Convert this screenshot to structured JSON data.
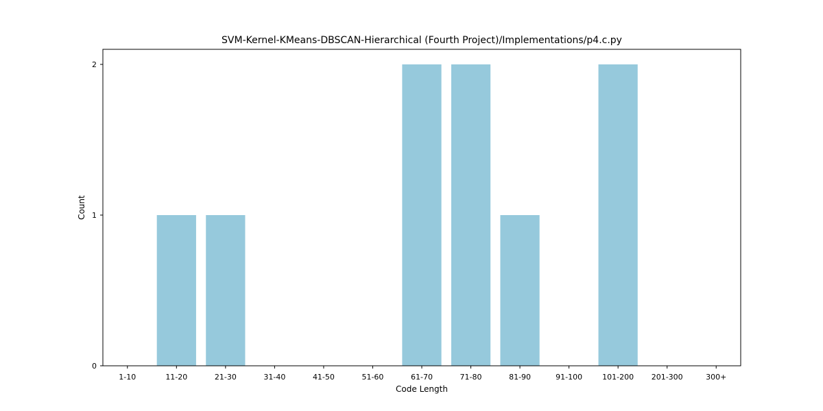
{
  "chart_data": {
    "type": "bar",
    "title": "SVM-Kernel-KMeans-DBSCAN-Hierarchical (Fourth Project)/Implementations/p4.c.py",
    "xlabel": "Code Length",
    "ylabel": "Count",
    "categories": [
      "1-10",
      "11-20",
      "21-30",
      "31-40",
      "41-50",
      "51-60",
      "61-70",
      "71-80",
      "81-90",
      "91-100",
      "101-200",
      "201-300",
      "300+"
    ],
    "values": [
      0,
      1,
      1,
      0,
      0,
      0,
      2,
      2,
      1,
      0,
      2,
      0,
      0
    ],
    "ylim": [
      0,
      2.1
    ],
    "yticks": [
      0,
      1,
      2
    ],
    "grid": false,
    "legend": false,
    "bar_color": "#96c9dc"
  }
}
